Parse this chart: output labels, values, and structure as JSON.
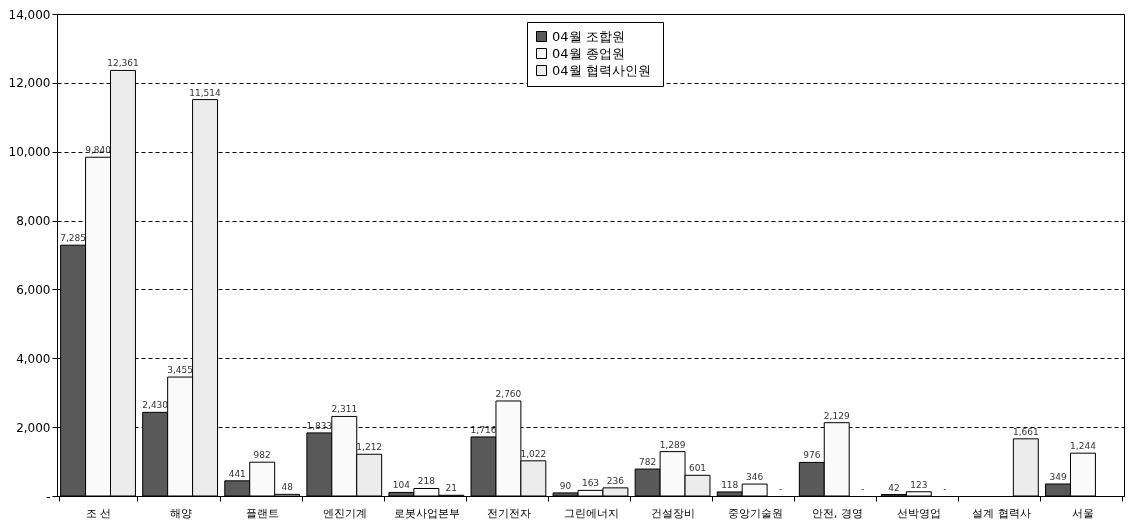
{
  "chart_data": {
    "type": "bar",
    "categories": [
      "조 선",
      "해양",
      "플랜트",
      "엔진기계",
      "로봇사업본부",
      "전기전자",
      "그린에너지",
      "건설장비",
      "중앙기술원",
      "안전, 경영",
      "선박영업",
      "설계 협력사",
      "서울"
    ],
    "series": [
      {
        "name": "04월  조합원",
        "color": "#595959",
        "values": [
          7285,
          2430,
          441,
          1833,
          104,
          1716,
          90,
          782,
          118,
          976,
          42,
          null,
          349
        ],
        "value_labels": [
          "7,285",
          "2,430",
          "441",
          "1,833",
          "104",
          "1,716",
          "90",
          "782",
          "118",
          "976",
          "42",
          null,
          "349"
        ]
      },
      {
        "name": "04월  종업원",
        "color": "#fafafa",
        "values": [
          9840,
          3455,
          982,
          2311,
          218,
          2760,
          163,
          1289,
          346,
          2129,
          123,
          null,
          1244
        ],
        "value_labels": [
          "9,840",
          "3,455",
          "982",
          "2,311",
          "218",
          "2,760",
          "163",
          "1,289",
          "346",
          "2,129",
          "123",
          null,
          "1,244"
        ]
      },
      {
        "name": "04월  협력사인원",
        "color": "#ececec",
        "values": [
          12361,
          11514,
          48,
          1212,
          21,
          1022,
          236,
          601,
          null,
          null,
          null,
          1661,
          null
        ],
        "value_labels": [
          "12,361",
          "11,514",
          "48",
          "1,212",
          "21",
          "1,022",
          "236",
          "601",
          null,
          null,
          null,
          "1,661",
          null
        ]
      }
    ],
    "annotations": [
      {
        "text": "-",
        "x": "중앙기술원",
        "y": 0
      },
      {
        "text": "-",
        "x": "안전, 경영",
        "y": 0
      },
      {
        "text": "-",
        "x": "선박영업",
        "y": 0
      }
    ],
    "ylim": [
      0,
      14000
    ],
    "yticks": [
      {
        "value": 0,
        "label": "-"
      },
      {
        "value": 2000,
        "label": "2,000"
      },
      {
        "value": 4000,
        "label": "4,000"
      },
      {
        "value": 6000,
        "label": "6,000"
      },
      {
        "value": 8000,
        "label": "8,000"
      },
      {
        "value": 10000,
        "label": "10,000"
      },
      {
        "value": 12000,
        "label": "12,000"
      },
      {
        "value": 14000,
        "label": "14,000"
      }
    ],
    "grid": "y",
    "legend": "top"
  }
}
